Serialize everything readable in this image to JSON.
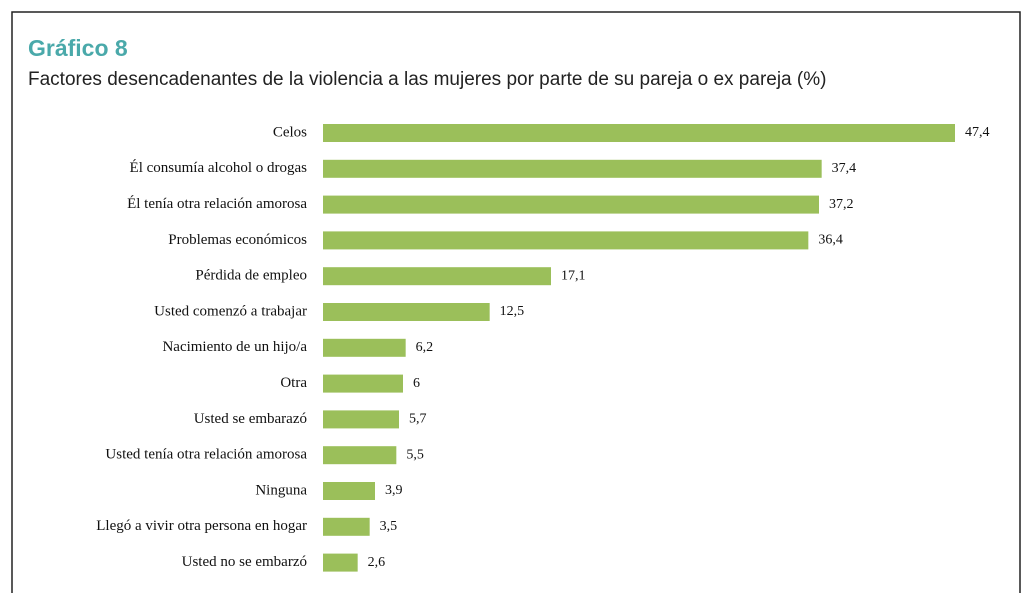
{
  "chart_data": {
    "type": "bar",
    "orientation": "horizontal",
    "title": "Gráfico 8",
    "subtitle": "Factores desencadenantes de la violencia a las mujeres por parte de su pareja o ex pareja (%)",
    "categories": [
      "Celos",
      "Él consumía alcohol o drogas",
      "Él tenía otra relación amorosa",
      "Problemas económicos",
      "Pérdida de empleo",
      "Usted comenzó a trabajar",
      "Nacimiento de un hijo/a",
      "Otra",
      "Usted se embarazó",
      "Usted tenía otra relación amorosa",
      "Ninguna",
      "Llegó a vivir otra persona en hogar",
      "Usted no se embarzó"
    ],
    "values": [
      47.4,
      37.4,
      37.2,
      36.4,
      17.1,
      12.5,
      6.2,
      6,
      5.7,
      5.5,
      3.9,
      3.5,
      2.6
    ],
    "value_labels": [
      "47,4",
      "37,4",
      "37,2",
      "36,4",
      "17,1",
      "12,5",
      "6,2",
      "6",
      "5,7",
      "5,5",
      "3,9",
      "3,5",
      "2,6"
    ],
    "color": "#9bbf5a"
  }
}
